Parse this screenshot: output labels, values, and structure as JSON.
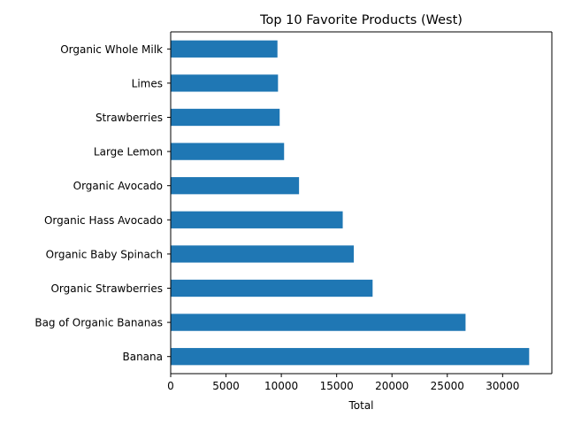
{
  "chart_data": {
    "type": "bar",
    "orientation": "horizontal",
    "title": "Top 10 Favorite Products (West)",
    "xlabel": "Total",
    "ylabel": "",
    "color": "#1f77b4",
    "xlim": [
      0,
      34450
    ],
    "xticks": [
      0,
      5000,
      10000,
      15000,
      20000,
      25000,
      30000
    ],
    "categories": [
      "Organic Whole Milk",
      "Limes",
      "Strawberries",
      "Large Lemon",
      "Organic Avocado",
      "Organic Hass Avocado",
      "Organic Baby Spinach",
      "Organic Strawberries",
      "Bag of Organic Bananas",
      "Banana"
    ],
    "values": [
      9650,
      9700,
      9850,
      10250,
      11600,
      15550,
      16550,
      18250,
      26650,
      32400
    ],
    "grid": false,
    "legend": "none"
  }
}
